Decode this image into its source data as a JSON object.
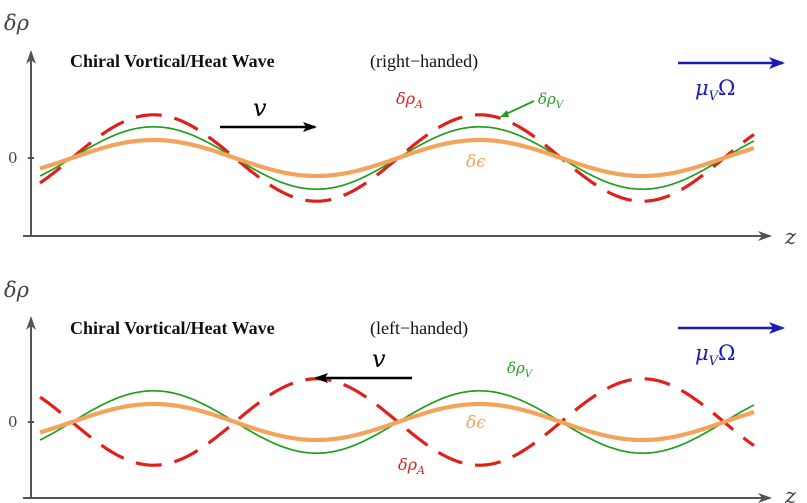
{
  "colors": {
    "axis": "#555555",
    "axial_density": "#e0201b",
    "vector_density": "#1ea01e",
    "energy_density": "#f3a35b",
    "velocity_arrow": "#000000",
    "mu_omega": "#1a1ab8",
    "text": "#111111"
  },
  "panels": [
    {
      "id": "right",
      "title": "Chiral Vortical/Heat Wave",
      "handedness": "(right−handed)",
      "y_axis_label": "δρ",
      "x_axis_label": "z",
      "zero_tick": "0",
      "velocity_label": "v",
      "velocity_direction": "right",
      "mu_omega_label": "μ_VΩ",
      "series": [
        {
          "name": "δρ_A",
          "label": "δρA",
          "amplitude": 1.8,
          "phase_deg": 0,
          "style": "dashed"
        },
        {
          "name": "δρ_V",
          "label": "δρV",
          "amplitude": 1.3,
          "phase_deg": 0,
          "style": "solid-thin"
        },
        {
          "name": "δϵ",
          "label": "δϵ",
          "amplitude": 0.75,
          "phase_deg": 0,
          "style": "solid-thick"
        }
      ]
    },
    {
      "id": "left",
      "title": "Chiral Vortical/Heat Wave",
      "handedness": "(left−handed)",
      "y_axis_label": "δρ",
      "x_axis_label": "z",
      "zero_tick": "0",
      "velocity_label": "v",
      "velocity_direction": "left",
      "mu_omega_label": "μ_VΩ",
      "series": [
        {
          "name": "δρ_A",
          "label": "δρA",
          "amplitude": 1.8,
          "phase_deg": 180,
          "style": "dashed"
        },
        {
          "name": "δρ_V",
          "label": "δρV",
          "amplitude": 1.3,
          "phase_deg": 0,
          "style": "solid-thin"
        },
        {
          "name": "δϵ",
          "label": "δϵ",
          "amplitude": 0.75,
          "phase_deg": 0,
          "style": "solid-thick"
        }
      ]
    }
  ],
  "labels": {
    "rho": "δρ",
    "sub_A": "A",
    "sub_V": "V",
    "eps": "δϵ",
    "mu": "μ",
    "omega": "Ω"
  }
}
